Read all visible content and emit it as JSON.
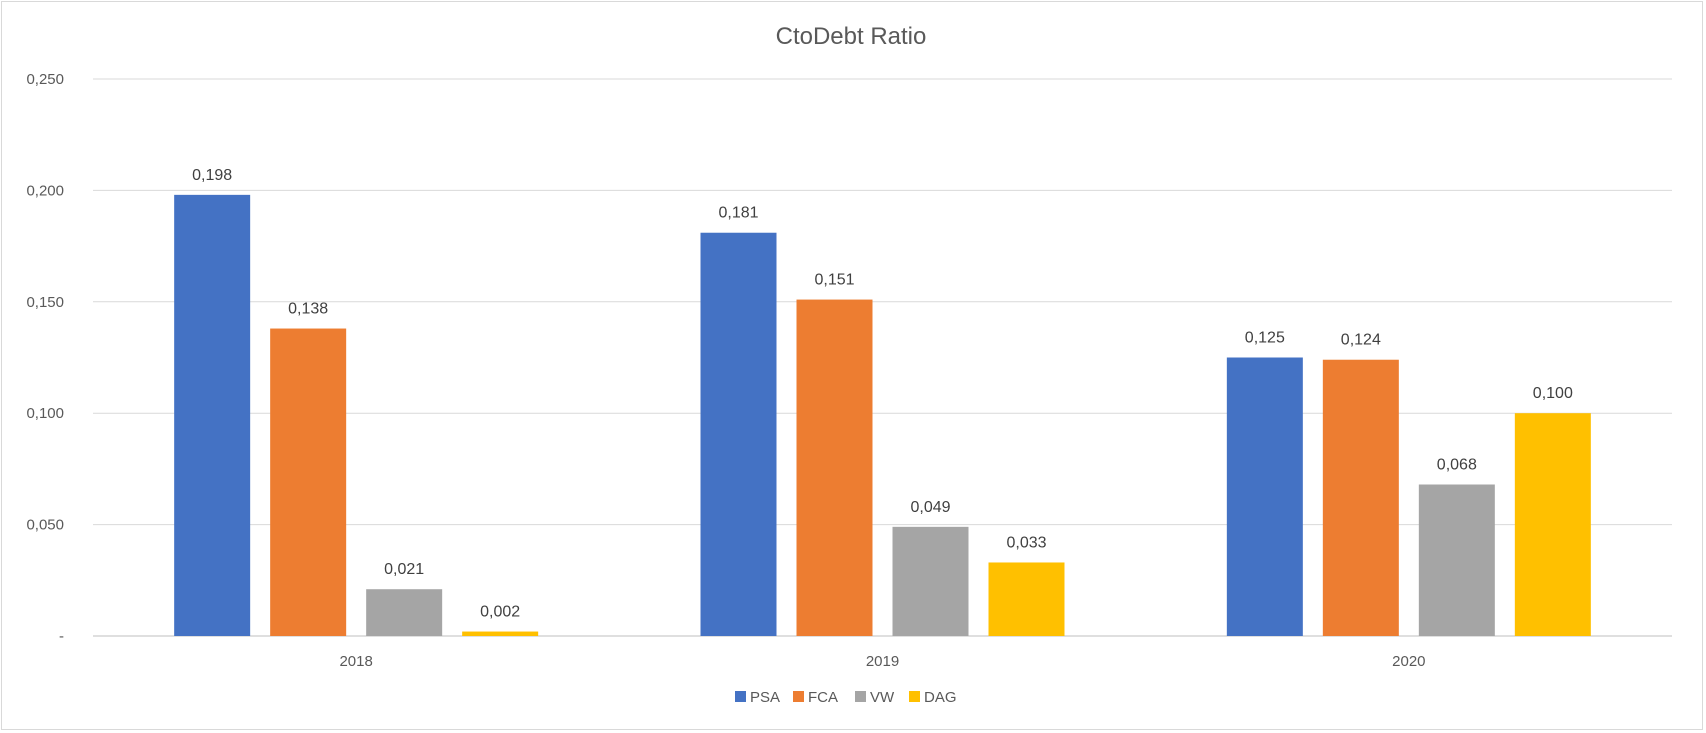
{
  "chart_data": {
    "type": "bar",
    "title": "CtoDebt Ratio",
    "xlabel": "",
    "ylabel": "",
    "categories": [
      "2018",
      "2019",
      "2020"
    ],
    "ylim": [
      0,
      0.25
    ],
    "yticks": [
      {
        "value": 0,
        "label": "-"
      },
      {
        "value": 0.05,
        "label": "0,050"
      },
      {
        "value": 0.1,
        "label": "0,100"
      },
      {
        "value": 0.15,
        "label": "0,150"
      },
      {
        "value": 0.2,
        "label": "0,200"
      },
      {
        "value": 0.25,
        "label": "0,250"
      }
    ],
    "grid": true,
    "legend_position": "bottom",
    "series": [
      {
        "name": "PSA",
        "color": "#4472C4",
        "values": [
          0.198,
          0.181,
          0.125
        ],
        "labels": [
          "0,198",
          "0,181",
          "0,125"
        ]
      },
      {
        "name": "FCA",
        "color": "#ED7D31",
        "values": [
          0.138,
          0.151,
          0.124
        ],
        "labels": [
          "0,138",
          "0,151",
          "0,124"
        ]
      },
      {
        "name": "VW",
        "color": "#A5A5A5",
        "values": [
          0.021,
          0.049,
          0.068
        ],
        "labels": [
          "0,021",
          "0,049",
          "0,068"
        ]
      },
      {
        "name": "DAG",
        "color": "#FFC000",
        "values": [
          0.002,
          0.033,
          0.1
        ],
        "labels": [
          "0,002",
          "0,033",
          "0,100"
        ]
      }
    ]
  }
}
